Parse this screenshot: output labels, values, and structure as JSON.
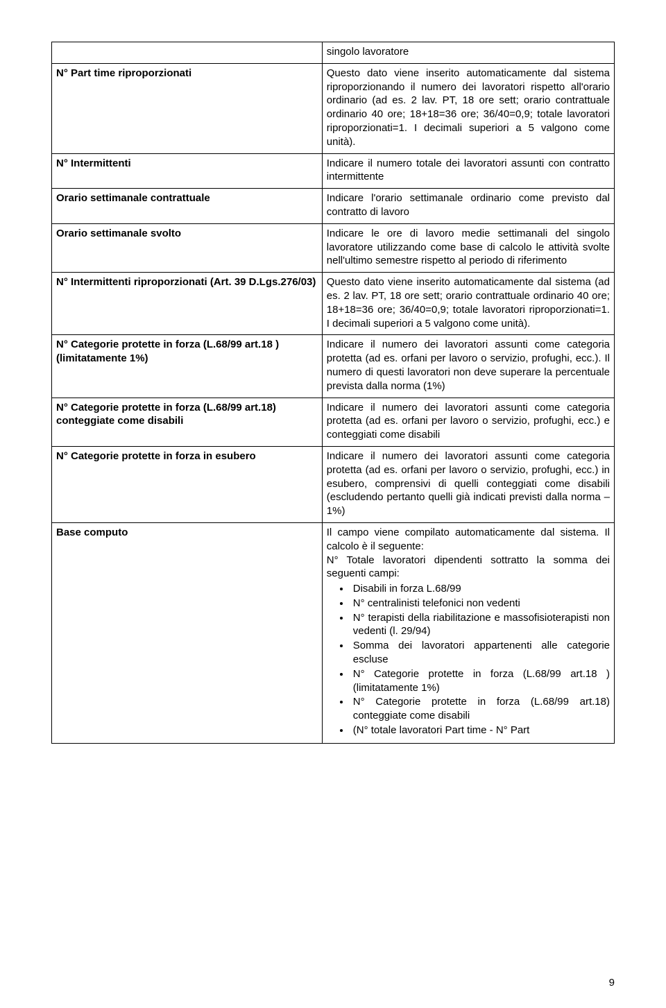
{
  "page_number": "9",
  "header_right": "singolo lavoratore",
  "rows": [
    {
      "label": "N° Part time riproporzionati",
      "desc": "Questo dato viene inserito automaticamente dal sistema riproporzionando il numero dei lavoratori rispetto all'orario ordinario (ad es. 2 lav. PT, 18 ore sett; orario contrattuale ordinario 40 ore; 18+18=36 ore; 36/40=0,9; totale lavoratori riproporzionati=1. I decimali superiori a 5 valgono come unità)."
    },
    {
      "label": "N° Intermittenti",
      "desc": "Indicare il numero totale dei lavoratori assunti con contratto intermittente"
    },
    {
      "label": "Orario settimanale contrattuale",
      "desc": "Indicare l'orario settimanale ordinario come previsto dal contratto di lavoro"
    },
    {
      "label": "Orario settimanale svolto",
      "desc": "Indicare le ore di lavoro medie settimanali del singolo lavoratore utilizzando come base di calcolo le attività svolte nell'ultimo semestre rispetto al periodo di riferimento"
    },
    {
      "label": "N° Intermittenti riproporzionati (Art. 39 D.Lgs.276/03)",
      "desc": "Questo dato viene inserito automaticamente dal sistema (ad es. 2 lav. PT, 18 ore sett; orario contrattuale ordinario 40 ore; 18+18=36 ore; 36/40=0,9; totale lavoratori riproporzionati=1. I decimali superiori a 5 valgono come unità)."
    },
    {
      "label": "N° Categorie protette in forza (L.68/99 art.18 ) (limitatamente 1%)",
      "desc": "Indicare il numero dei lavoratori assunti come categoria protetta (ad es. orfani per lavoro o servizio, profughi, ecc.). Il numero di questi lavoratori non deve superare la percentuale prevista dalla norma (1%)"
    },
    {
      "label": "N° Categorie protette in forza (L.68/99 art.18) conteggiate come disabili",
      "desc": "Indicare il numero dei lavoratori assunti come categoria protetta (ad es. orfani per lavoro o servizio, profughi, ecc.) e conteggiati come disabili"
    },
    {
      "label": "N° Categorie protette in forza in esubero",
      "desc": "Indicare il numero dei lavoratori assunti come categoria protetta (ad es. orfani per lavoro o servizio, profughi, ecc.) in esubero, comprensivi di quelli conteggiati come disabili (escludendo pertanto quelli già indicati previsti dalla norma – 1%)"
    }
  ],
  "last_row": {
    "label": "Base computo",
    "desc_intro": "Il campo viene compilato automaticamente dal sistema. Il calcolo è il seguente:",
    "desc_lead": "N° Totale lavoratori dipendenti sottratto la somma dei seguenti campi:",
    "bullets": [
      "Disabili in forza L.68/99",
      "N° centralinisti telefonici non vedenti",
      "N° terapisti della riabilitazione e massofisioterapisti non vedenti (l. 29/94)",
      "Somma dei lavoratori appartenenti alle categorie escluse",
      "N° Categorie protette in forza (L.68/99 art.18 ) (limitatamente 1%)",
      "N° Categorie protette in forza (L.68/99 art.18) conteggiate come disabili",
      "(N° totale lavoratori Part time - N° Part"
    ]
  }
}
